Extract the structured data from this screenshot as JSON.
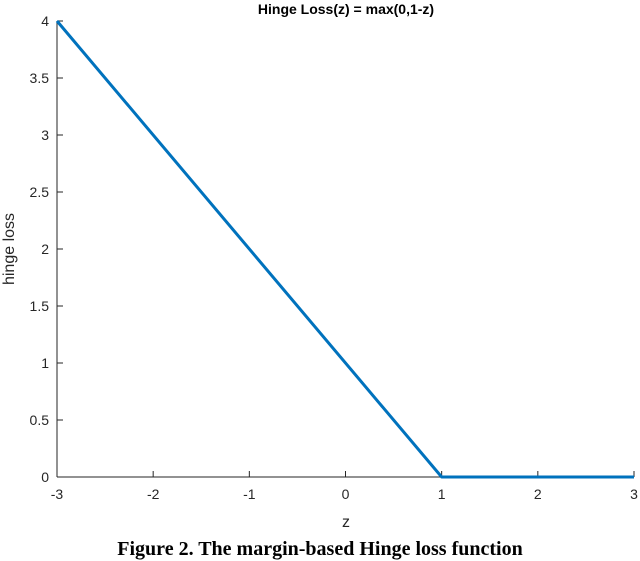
{
  "chart_data": {
    "type": "line",
    "title": "Hinge Loss(z) = max(0,1-z)",
    "xlabel": "z",
    "ylabel": "hinge loss",
    "xlim": [
      -3,
      3
    ],
    "ylim": [
      0,
      4
    ],
    "x_ticks": [
      "-3",
      "-2",
      "-1",
      "0",
      "1",
      "2",
      "3"
    ],
    "y_ticks": [
      "0",
      "0.5",
      "1",
      "1.5",
      "2",
      "2.5",
      "3",
      "3.5",
      "4"
    ],
    "grid": false,
    "series": [
      {
        "x": [
          -3,
          1,
          3
        ],
        "y": [
          4,
          0,
          0
        ],
        "color": "#0072bd"
      }
    ]
  },
  "caption": "Figure 2. The margin-based Hinge loss function"
}
